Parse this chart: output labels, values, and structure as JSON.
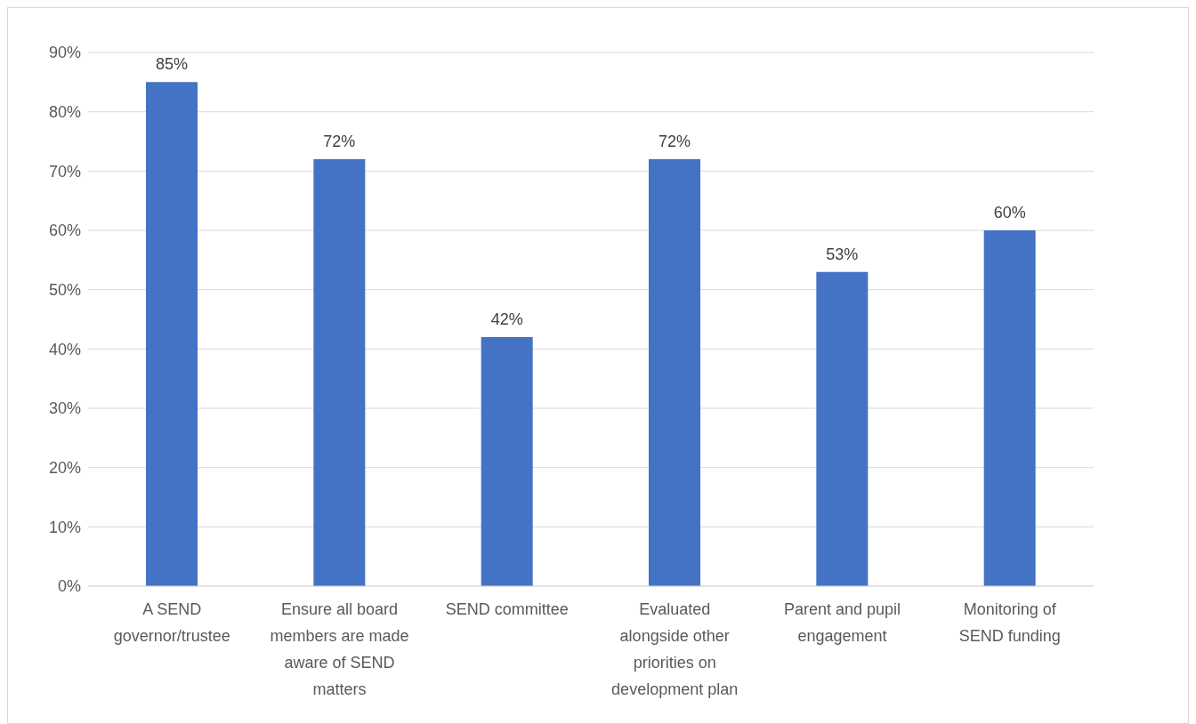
{
  "chart_data": {
    "type": "bar",
    "categories": [
      "A SEND governor/trustee",
      "Ensure all board members are made aware of SEND matters",
      "SEND committee",
      "Evaluated alongside other priorities on development plan",
      "Parent and pupil engagement",
      "Monitoring of SEND funding"
    ],
    "values": [
      85,
      72,
      42,
      72,
      53,
      60
    ],
    "color": "#4472c4",
    "value_labels": [
      "85%",
      "72%",
      "42%",
      "72%",
      "53%",
      "60%"
    ],
    "ylim": [
      0,
      90
    ],
    "yticks": [
      {
        "value": 0,
        "label": "0%"
      },
      {
        "value": 10,
        "label": "10%"
      },
      {
        "value": 20,
        "label": "20%"
      },
      {
        "value": 30,
        "label": "30%"
      },
      {
        "value": 40,
        "label": "40%"
      },
      {
        "value": 50,
        "label": "50%"
      },
      {
        "value": 60,
        "label": "60%"
      },
      {
        "value": 70,
        "label": "70%"
      },
      {
        "value": 80,
        "label": "80%"
      },
      {
        "value": 90,
        "label": "90%"
      }
    ],
    "grid": "y",
    "legend": false
  }
}
